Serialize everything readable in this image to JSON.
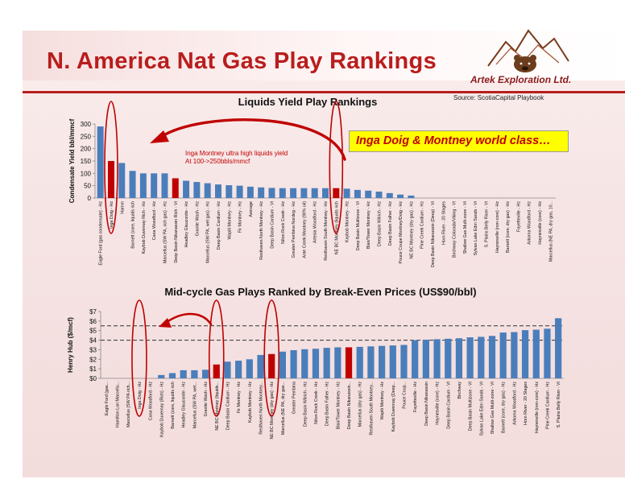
{
  "slide": {
    "title": "N. America Nat Gas Play Rankings",
    "logo_text": "Artek Exploration Ltd.",
    "source": "Source:  ScotiaCapital Playbook",
    "callout": "Inga Doig & Montney world class…",
    "note_line1": "Inga Montney ultra high liquids yield",
    "note_line2": "At 100->250bbls/mmcf"
  },
  "colors": {
    "bar": "#4a7ebb",
    "highlight": "#c00000",
    "title": "#b91d1d",
    "callout_bg": "#ffff00"
  },
  "chart_data": [
    {
      "type": "bar",
      "title": "Liquids Yield Play Rankings",
      "ylabel": "Condensate Yield bbl/mmcf",
      "ylim": [
        0,
        300
      ],
      "yticks": [
        0,
        50,
        100,
        150,
        200,
        250,
        300
      ],
      "grid": false,
      "categories": [
        "Eagle Ford (gas condensate) - Hz",
        "Inga Doig - Hz",
        "Hamm",
        "Barnett (core, liquids rich",
        "Kaybob Duvernay Rich - Hz",
        "Cana Woodford - Hz",
        "Marcellus (SW PA, rich gas) - Hz",
        "Deep Basin Nikanassin Rich - Vt",
        "Headley Glauconite - Hz",
        "Granite Wash - Hz",
        "Marcellus (SW PA, wet gas) - Hz",
        "Deep Basin Cardium - Hz",
        "Wapiti Montney - Hz",
        "Fir Montney - Hz",
        "Average",
        "Resthaven North Montney - Hz",
        "Deep Basin Cardium - Vt",
        "Niton Rock Creek - Hz",
        "Greater Pembina Nordeg - Hz",
        "Ante Creek Montney (90% oil)",
        "Artesia Woodford - Hz",
        "Resthaven South Montney - Hz",
        "NE BC Montney (liquids rich",
        "Kaybob Montney - Hz",
        "Deep Basin Mulitzone - Vt",
        "Blair/Tower Montney - Hz",
        "Deep Basin Wilrich - Hz",
        "Deep Basin Falher - Hz",
        "Pouce Coupe Montney/Doig - Hz",
        "NE BC Montney (dry gas) - Hz",
        "Pine Creek Cardium - Hz",
        "Deep Basin Nikanassin (Deep) - Vt",
        "Horn River - 20 Stages",
        "Birchway Colorado/Viking - Vt",
        "Shallow Gas Multi-zone - Vt",
        "Sylvan Lake Edm Sands - Vt",
        "S. Plains Belly River - Vt",
        "Haynesville (non-core) - Hz",
        "Barnett (core, dry gas) - Hz",
        "Fayetteville - Hz",
        "Arkoma Woodford - Hz",
        "Haynesville (core) - Hz",
        "Marcellus (NE PA, dry gas, 10..."
      ],
      "values": [
        290,
        150,
        142,
        110,
        100,
        100,
        100,
        80,
        70,
        65,
        60,
        55,
        52,
        50,
        46,
        43,
        41,
        40,
        40,
        40,
        40,
        40,
        40,
        38,
        33,
        30,
        26,
        20,
        14,
        10,
        0,
        0,
        0,
        0,
        0,
        0,
        0,
        0,
        0,
        0,
        0,
        0,
        0
      ],
      "highlight": [
        "Inga Doig - Hz",
        "Deep Basin Nikanassin Rich - Vt",
        "NE BC Montney (liquids rich"
      ],
      "circled": [
        "Inga Doig - Hz",
        "NE BC Montney (liquids rich"
      ]
    },
    {
      "type": "bar",
      "title": "Mid-cycle Gas Plays Ranked by Break-Even Prices (US$90/bbl)",
      "ylabel": "Henry Hub ($/mcf)",
      "ylim": [
        0,
        7
      ],
      "yticks": [
        "$0",
        "$1",
        "$2",
        "$3",
        "$4",
        "$5",
        "$6",
        "$7"
      ],
      "reference_lines": [
        4.0,
        5.5
      ],
      "categories": [
        "Eagle Ford (gas...",
        "Hamilton Lon Marcellu...",
        "Marcellus (SW PA rich...",
        "Inga Doig - Hz",
        "Cana Woodford - Hz",
        "Kaybob Duvernay (Rich) - Hz",
        "Barnett (core, liquids rich",
        "Headley Glauconite - Hz",
        "Marcellus (SW PA, wet...",
        "Granite Wash - Hz",
        "NE BC Montney (liquids...",
        "Deep Basin Cardium - Hz",
        "Fir Montney - Hz",
        "Kaybob Montney - Hz",
        "Resthaven North Montney...",
        "NE BC Montney (dry gas) - Hz",
        "Marcellus (NE PA, dry gas...",
        "Greater Pembina",
        "Deep Basin Wilrich - Hz",
        "Niton Rock Creek - Hz",
        "Deep Basin Falher - Hz",
        "Blair/Tower Montney - Hz",
        "Deep Basin Nikanassin...",
        "Marcellus (dry gas) - Hz",
        "Resthaven South Montney...",
        "Wapiti Montney - Hz",
        "Kaybob Duvernay (Deep...",
        "Pouce Coup...",
        "Fayetteville - Hz",
        "Deep Basin Nikanassin",
        "Haynesville (core) - Hz",
        "Deep Basin Cardium - Vt",
        "Birchway",
        "Deep Basin Multizone - Vt",
        "Sylvan Lake Edm Sands - Vt",
        "Shallow Gas Multi-zone - Vt",
        "Barnett (core, dry gas) - Hz",
        "Arkoma Woodford - Hz",
        "Horn River - 20 Stages",
        "Haynesville (non-core) - Hz",
        "Pine Creek Cardium - Hz",
        "S. Plains Belly River - Vt"
      ],
      "values": [
        0,
        0,
        0,
        0,
        0,
        0.35,
        0.55,
        0.85,
        0.85,
        0.9,
        1.45,
        1.75,
        1.85,
        2.0,
        2.45,
        2.55,
        2.8,
        2.95,
        3.05,
        3.1,
        3.2,
        3.25,
        3.25,
        3.3,
        3.35,
        3.4,
        3.45,
        3.5,
        4.0,
        4.05,
        4.1,
        4.15,
        4.2,
        4.3,
        4.35,
        4.45,
        4.8,
        4.85,
        5.05,
        5.1,
        5.2,
        6.3
      ],
      "highlight": [
        "Inga Doig - Hz",
        "NE BC Montney (liquids...",
        "NE BC Montney (dry gas) - Hz",
        "Deep Basin Nikanassin..."
      ],
      "circled": [
        "Inga Doig - Hz",
        "NE BC Montney (liquids...",
        "NE BC Montney (dry gas) - Hz"
      ]
    }
  ]
}
